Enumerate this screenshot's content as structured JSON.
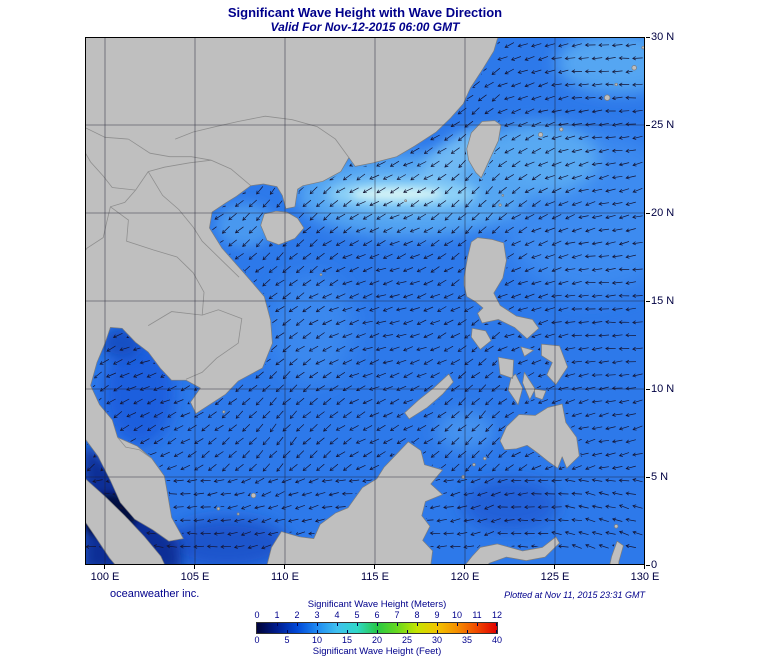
{
  "header": {
    "title": "Significant Wave Height with Wave Direction",
    "valid": "Valid For Nov-12-2015 06:00 GMT"
  },
  "footer": {
    "credit": "oceanweather inc.",
    "plotted": "Plotted at Nov 11, 2015 23:31 GMT"
  },
  "axes": {
    "x_ticks": [
      {
        "label": "100 E",
        "lon": 100
      },
      {
        "label": "105 E",
        "lon": 105
      },
      {
        "label": "110 E",
        "lon": 110
      },
      {
        "label": "115 E",
        "lon": 115
      },
      {
        "label": "120 E",
        "lon": 120
      },
      {
        "label": "125 E",
        "lon": 125
      },
      {
        "label": "130 E",
        "lon": 130
      }
    ],
    "y_ticks": [
      {
        "label": "30 N",
        "lat": 30
      },
      {
        "label": "25 N",
        "lat": 25
      },
      {
        "label": "20 N",
        "lat": 20
      },
      {
        "label": "15 N",
        "lat": 15
      },
      {
        "label": "10 N",
        "lat": 10
      },
      {
        "label": "5 N",
        "lat": 5
      },
      {
        "label": "0",
        "lat": 0
      }
    ]
  },
  "legend": {
    "meters_title": "Significant Wave Height (Meters)",
    "feet_title": "Significant Wave Height (Feet)",
    "meters_ticks": [
      "0",
      "1",
      "2",
      "3",
      "4",
      "5",
      "6",
      "7",
      "8",
      "9",
      "10",
      "11",
      "12"
    ],
    "feet_ticks": [
      "0",
      "5",
      "10",
      "15",
      "20",
      "25",
      "30",
      "35",
      "40"
    ],
    "gradient_stops": [
      "#000338",
      "#001c8e",
      "#0048d8",
      "#1f8af2",
      "#3fc0f0",
      "#2fd8c8",
      "#27c845",
      "#66d81f",
      "#c6e400",
      "#f2c400",
      "#f58f00",
      "#f04800",
      "#e00000"
    ]
  },
  "colors": {
    "text_navy": "#00008b",
    "axis_text": "#000042",
    "ocean_base": "#2d79ea",
    "land": "#bfbfbf",
    "coastline": "#7d7d7d",
    "grid": "#1c1c30",
    "arrows": "#141432",
    "frame": "#000000"
  },
  "chart_data": {
    "type": "map",
    "title": "Significant Wave Height with Wave Direction",
    "valid_time": "Nov-12-2015 06:00 GMT",
    "plotted_time": "Nov 11, 2015 23:31 GMT",
    "region": {
      "lon_min_e": 99,
      "lon_max_e": 130,
      "lat_min_n": 0,
      "lat_max_n": 30,
      "grid_interval_deg": 5
    },
    "legend_range_m": [
      0,
      12
    ],
    "legend_range_ft": [
      0,
      40
    ],
    "wave_direction_field": "arrows over water point predominantly toward the southwest to west (northeast monsoon swell)",
    "features": [
      {
        "area": "Luzon Strait / northern South China Sea band near 20-22N",
        "hs_m": "3-4"
      },
      {
        "area": "Taiwan Strait and waters east of Taiwan",
        "hs_m": "2.5-3.5"
      },
      {
        "area": "central and southern South China Sea",
        "hs_m": "2-2.5"
      },
      {
        "area": "western Pacific east of the Philippines",
        "hs_m": "2-2.5"
      },
      {
        "area": "Gulf of Tonkin",
        "hs_m": "1.5-2"
      },
      {
        "area": "Gulf of Thailand",
        "hs_m": "1-1.5"
      },
      {
        "area": "Karimata Strait / equatorial waters",
        "hs_m": "1-1.5"
      },
      {
        "area": "Malacca Strait (bottom left)",
        "hs_m": "0-0.5"
      }
    ]
  }
}
